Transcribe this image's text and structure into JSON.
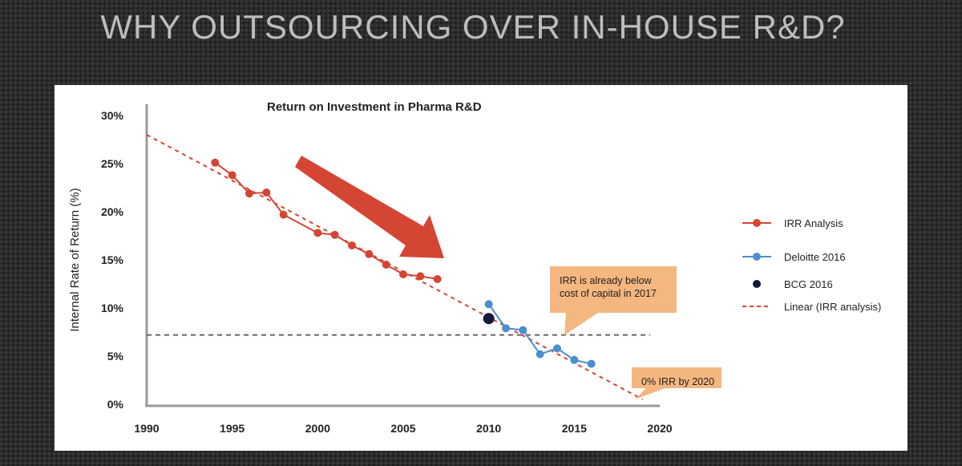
{
  "slide": {
    "title": "WHY OUTSOURCING OVER IN-HOUSE R&D?"
  },
  "colors": {
    "irr": "#d44534",
    "deloitte": "#4b8fce",
    "bcg": "#141a38",
    "linear": "#d44534",
    "cost_of_capital_line": "#666666",
    "callout": "#f4b77f",
    "arrow": "#d44534"
  },
  "callouts": [
    "IRR is already below\ncost of capital in 2017",
    "0% IRR by 2020"
  ],
  "chart_data": {
    "type": "line",
    "title": "Return on Investment in Pharma R&D",
    "xlabel": "",
    "ylabel": "Internal Rate of Return (%)",
    "xlim": [
      1990,
      2020
    ],
    "ylim": [
      0,
      30
    ],
    "x_ticks": [
      "1990",
      "1995",
      "2000",
      "2005",
      "2010",
      "2015",
      "2020"
    ],
    "y_ticks": [
      "0%",
      "5%",
      "10%",
      "15%",
      "20%",
      "25%",
      "30%"
    ],
    "grid": false,
    "legend_position": "right",
    "series": [
      {
        "name": "IRR Analysis",
        "type": "line-marker",
        "x": [
          1994,
          1995,
          1996,
          1997,
          1998,
          2000,
          2001,
          2002,
          2003,
          2004,
          2005,
          2006,
          2007
        ],
        "y": [
          25.1,
          23.8,
          21.9,
          22.0,
          19.7,
          17.8,
          17.6,
          16.5,
          15.6,
          14.5,
          13.5,
          13.3,
          13.0
        ]
      },
      {
        "name": "Deloitte 2016",
        "type": "line-marker",
        "x": [
          2010,
          2011,
          2012,
          2013,
          2014,
          2015,
          2016
        ],
        "y": [
          10.4,
          7.9,
          7.7,
          5.2,
          5.8,
          4.6,
          4.2
        ]
      },
      {
        "name": "BCG 2016",
        "type": "point",
        "x": [
          2010
        ],
        "y": [
          8.9
        ]
      },
      {
        "name": "Linear (IRR analysis)",
        "type": "dashed-trend",
        "x": [
          1990,
          2019
        ],
        "y": [
          28.0,
          0.5
        ]
      }
    ],
    "reference_lines": [
      {
        "type": "horizontal-dashed",
        "y": 7.2,
        "x_range": [
          1990,
          2020
        ]
      }
    ]
  }
}
